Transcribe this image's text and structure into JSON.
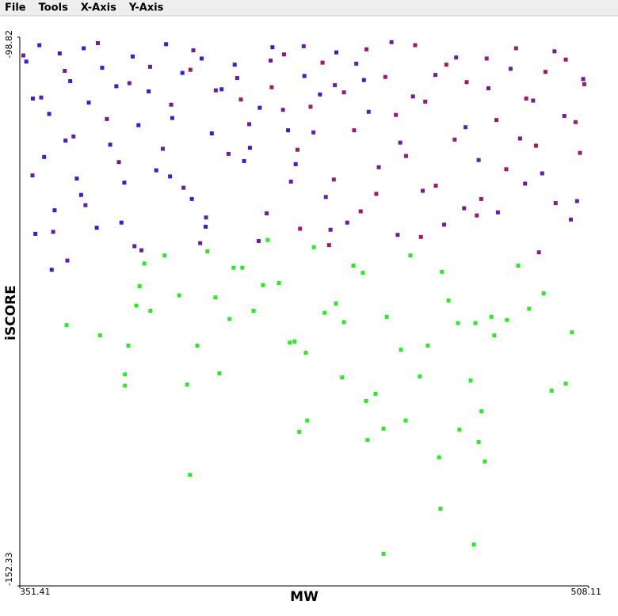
{
  "menu": [
    "File",
    "Tools",
    "X-Axis",
    "Y-Axis"
  ],
  "chart_data": {
    "type": "scatter",
    "x_label": "MW",
    "y_label": "iSCORE",
    "xlim": [
      351.41,
      508.11
    ],
    "ylim": [
      -152.33,
      -98.82
    ],
    "xticks": [
      351.41,
      508.11
    ],
    "yticks": [
      -152.33,
      -98.82
    ],
    "series": [
      {
        "color": "#3a1ae0",
        "x": [
          353.2,
          355.0,
          356.8,
          358.1,
          359.5,
          361.0,
          362.4,
          364.0,
          365.3,
          367.1,
          369.0,
          370.4,
          372.6,
          374.1,
          376.3,
          378.0,
          380.2,
          382.5,
          384.1,
          386.9,
          389.0,
          391.7,
          393.4,
          396.2,
          398.8,
          401.5,
          404.3,
          407.0,
          410.6,
          413.2,
          417.5,
          421.0,
          425.3,
          429.8,
          434.1,
          438.6,
          355.7,
          360.2,
          368.3,
          379.4,
          392.8,
          402.6,
          414.8,
          427.4,
          446.2
        ],
        "y": [
          -101.2,
          -104.8,
          -99.6,
          -110.5,
          -106.3,
          -115.7,
          -100.4,
          -108.9,
          -103.1,
          -112.6,
          -99.9,
          -105.2,
          -117.4,
          -101.8,
          -109.3,
          -103.6,
          -113.0,
          -100.7,
          -107.4,
          -104.1,
          -111.8,
          -99.5,
          -106.7,
          -102.3,
          -114.6,
          -100.9,
          -108.2,
          -103.9,
          -101.5,
          -110.9,
          -105.7,
          -99.8,
          -107.9,
          -102.6,
          -104.4,
          -100.3,
          -118.0,
          -121.5,
          -114.2,
          -116.9,
          -112.4,
          -117.3,
          -109.6,
          -111.2,
          -103.0
        ]
      },
      {
        "color": "#6a1ca8",
        "x": [
          352.4,
          354.9,
          357.3,
          360.6,
          363.8,
          366.2,
          369.5,
          372.9,
          375.4,
          378.7,
          381.6,
          384.9,
          387.3,
          390.8,
          393.1,
          396.5,
          399.2,
          402.7,
          405.4,
          408.9,
          411.3,
          414.6,
          417.2,
          420.5,
          423.9,
          426.1,
          429.6,
          432.3,
          435.7,
          438.2,
          441.6,
          444.1,
          447.5,
          450.3,
          453.8,
          456.2,
          459.7,
          462.4,
          465.9,
          468.3,
          471.6,
          474.2,
          477.8,
          480.5,
          483.1,
          486.6,
          489.2,
          492.8,
          495.3,
          498.7,
          501.4,
          504.9,
          506.6,
          364.5,
          383.0,
          401.1,
          419.4,
          437.0,
          455.5,
          473.8,
          490.6,
          503.2
        ],
        "y": [
          -100.6,
          -112.3,
          -104.7,
          -117.8,
          -102.1,
          -108.5,
          -115.2,
          -99.4,
          -106.8,
          -111.0,
          -103.3,
          -119.6,
          -101.7,
          -109.7,
          -105.4,
          -113.5,
          -100.1,
          -116.4,
          -104.0,
          -110.2,
          -102.8,
          -107.3,
          -118.7,
          -101.1,
          -105.9,
          -112.9,
          -99.7,
          -108.1,
          -114.4,
          -103.5,
          -116.9,
          -101.4,
          -106.1,
          -111.5,
          -99.3,
          -109.1,
          -104.6,
          -113.8,
          -102.5,
          -117.1,
          -100.8,
          -107.6,
          -110.8,
          -103.8,
          -115.9,
          -101.9,
          -108.7,
          -105.0,
          -112.1,
          -100.2,
          -106.5,
          -114.8,
          -102.9,
          -120.6,
          -119.2,
          -118.9,
          -116.0,
          -117.6,
          -118.1,
          -115.5,
          -113.1,
          -116.6
        ]
      },
      {
        "color": "#a01868",
        "x": [
          420.8,
          424.2,
          427.9,
          431.5,
          434.8,
          437.9,
          440.7,
          443.5,
          446.9,
          449.6,
          452.1,
          455.0,
          457.8,
          460.3,
          463.1,
          466.0,
          468.9,
          471.2,
          474.5,
          477.3,
          480.0,
          482.7,
          485.4,
          488.1,
          490.9,
          493.6,
          496.2,
          499.0,
          501.8,
          504.5,
          506.9,
          428.6,
          445.3,
          461.9,
          478.5,
          494.4,
          505.7,
          412.3,
          398.4,
          436.6
        ],
        "y": [
          -103.7,
          -100.5,
          -109.8,
          -105.6,
          -101.3,
          -112.7,
          -104.2,
          -107.9,
          -100.0,
          -114.1,
          -102.7,
          -106.4,
          -110.4,
          -99.6,
          -105.1,
          -113.3,
          -101.5,
          -108.8,
          -103.2,
          -116.2,
          -100.9,
          -106.9,
          -111.7,
          -99.9,
          -104.8,
          -109.4,
          -102.2,
          -115.0,
          -101.0,
          -107.1,
          -103.4,
          -117.5,
          -115.8,
          -118.3,
          -114.6,
          -119.8,
          -110.1,
          -104.9,
          -102.0,
          -119.1
        ]
      },
      {
        "color": "#22ee22",
        "x": [
          364.3,
          373.5,
          380.4,
          380.4,
          381.3,
          383.5,
          384.4,
          385.7,
          387.4,
          391.3,
          395.3,
          397.5,
          398.3,
          400.3,
          403.1,
          405.3,
          406.4,
          409.2,
          410.3,
          412.7,
          415.8,
          418.4,
          419.7,
          422.8,
          425.8,
          427.1,
          428.4,
          430.2,
          430.6,
          432.4,
          435.4,
          438.5,
          440.2,
          440.7,
          443.3,
          445.9,
          446.8,
          447.2,
          449.4,
          451.6,
          451.6,
          452.5,
          456.4,
          457.7,
          459.0,
          461.6,
          463.8,
          466.9,
          467.3,
          467.7,
          469.5,
          472.1,
          472.5,
          475.6,
          476.5,
          476.9,
          477.8,
          478.6,
          479.5,
          481.3,
          482.1,
          485.6,
          488.7,
          491.7,
          495.7,
          497.9,
          501.8,
          503.5
        ],
        "y": [
          -126.9,
          -127.9,
          -131.7,
          -132.8,
          -128.9,
          -125.0,
          -123.1,
          -120.9,
          -125.5,
          -120.1,
          -124.0,
          -132.7,
          -141.5,
          -128.9,
          -119.7,
          -124.2,
          -131.6,
          -126.3,
          -121.3,
          -121.3,
          -125.5,
          -123.0,
          -118.6,
          -122.8,
          -128.6,
          -128.5,
          -137.3,
          -129.6,
          -136.2,
          -119.3,
          -125.7,
          -124.8,
          -132.0,
          -126.6,
          -121.1,
          -121.8,
          -134.3,
          -138.1,
          -133.6,
          -149.2,
          -137.0,
          -126.1,
          -129.3,
          -136.2,
          -120.1,
          -131.9,
          -128.9,
          -139.8,
          -144.8,
          -121.7,
          -124.5,
          -126.7,
          -137.1,
          -132.3,
          -148.3,
          -126.7,
          -138.3,
          -135.3,
          -140.2,
          -126.1,
          -127.9,
          -126.4,
          -121.1,
          -125.3,
          -123.8,
          -133.3,
          -132.6,
          -127.6
        ]
      }
    ]
  }
}
